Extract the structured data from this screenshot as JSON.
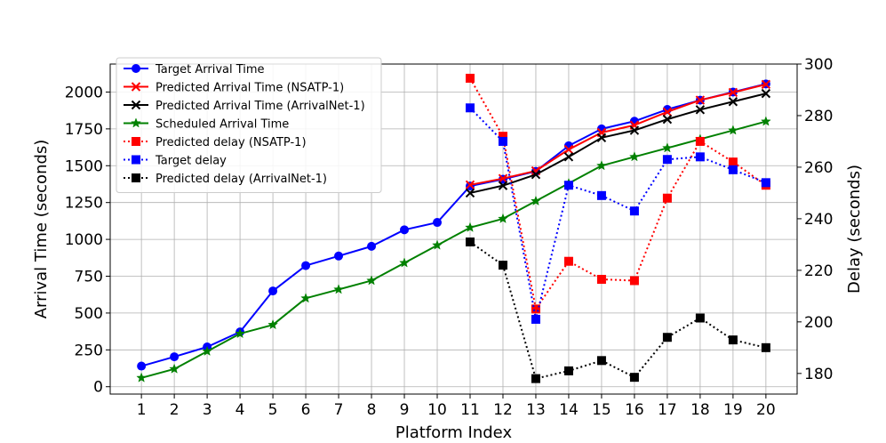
{
  "chart_data": {
    "type": "line",
    "xlabel": "Platform Index",
    "ylabel_left": "Arrival Time (seconds)",
    "ylabel_right": "Delay (seconds)",
    "x": [
      1,
      2,
      3,
      4,
      5,
      6,
      7,
      8,
      9,
      10,
      11,
      12,
      13,
      14,
      15,
      16,
      17,
      18,
      19,
      20
    ],
    "xticks": [
      "1",
      "2",
      "3",
      "4",
      "5",
      "6",
      "7",
      "8",
      "9",
      "10",
      "11",
      "12",
      "13",
      "14",
      "15",
      "16",
      "17",
      "18",
      "19",
      "20"
    ],
    "xlim": [
      0.05,
      20.95
    ],
    "ylim_left": [
      -50,
      2190
    ],
    "ylim_right": [
      172,
      300
    ],
    "yticks_left": [
      0,
      250,
      500,
      750,
      1000,
      1250,
      1500,
      1750,
      2000
    ],
    "yticks_right": [
      180,
      200,
      220,
      240,
      260,
      280,
      300
    ],
    "grid": true,
    "legend_position": "top-left",
    "series": [
      {
        "name": "Target Arrival Time",
        "axis": "left",
        "color": "#0000ff",
        "style": "solid",
        "marker": "circle",
        "x": [
          1,
          2,
          3,
          4,
          5,
          6,
          7,
          8,
          9,
          10,
          11,
          12,
          13,
          14,
          15,
          16,
          17,
          18,
          19,
          20
        ],
        "values": [
          140,
          203,
          270,
          372,
          650,
          822,
          887,
          953,
          1065,
          1115,
          1362,
          1408,
          1462,
          1635,
          1750,
          1802,
          1882,
          1945,
          2000,
          2055
        ]
      },
      {
        "name": "Predicted Arrival Time (NSATP-1)",
        "axis": "left",
        "color": "#ff0000",
        "style": "solid",
        "marker": "x",
        "x": [
          11,
          12,
          13,
          14,
          15,
          16,
          17,
          18,
          19,
          20
        ],
        "values": [
          1370,
          1413,
          1465,
          1610,
          1725,
          1775,
          1865,
          1945,
          1997,
          2052
        ]
      },
      {
        "name": "Predicted Arrival Time (ArrivalNet-1)",
        "axis": "left",
        "color": "#000000",
        "style": "solid",
        "marker": "x",
        "x": [
          11,
          12,
          13,
          14,
          15,
          16,
          17,
          18,
          19,
          20
        ],
        "values": [
          1315,
          1365,
          1440,
          1560,
          1690,
          1740,
          1815,
          1880,
          1935,
          1990
        ]
      },
      {
        "name": "Scheduled Arrival Time",
        "axis": "left",
        "color": "#008000",
        "style": "solid",
        "marker": "star",
        "x": [
          1,
          2,
          3,
          4,
          5,
          6,
          7,
          8,
          9,
          10,
          11,
          12,
          13,
          14,
          15,
          16,
          17,
          18,
          19,
          20
        ],
        "values": [
          60,
          120,
          240,
          360,
          420,
          600,
          660,
          720,
          840,
          960,
          1080,
          1140,
          1260,
          1380,
          1500,
          1560,
          1620,
          1680,
          1740,
          1800
        ]
      },
      {
        "name": "Predicted delay (NSATP-1)",
        "axis": "right",
        "color": "#ff0000",
        "style": "dotted",
        "marker": "square",
        "x": [
          11,
          12,
          13,
          14,
          15,
          16,
          17,
          18,
          19,
          20
        ],
        "values": [
          294.5,
          272,
          205,
          223.5,
          216.5,
          216,
          248,
          270,
          262,
          253
        ]
      },
      {
        "name": "Target delay",
        "axis": "right",
        "color": "#0000ff",
        "style": "dotted",
        "marker": "square",
        "x": [
          11,
          12,
          13,
          14,
          15,
          16,
          17,
          18,
          19,
          20
        ],
        "values": [
          283,
          270,
          201,
          253,
          249,
          243,
          263,
          264,
          259,
          254
        ]
      },
      {
        "name": "Predicted delay (ArrivalNet-1)",
        "axis": "right",
        "color": "#000000",
        "style": "dotted",
        "marker": "square",
        "x": [
          11,
          12,
          13,
          14,
          15,
          16,
          17,
          18,
          19,
          20
        ],
        "values": [
          231,
          222,
          178,
          181,
          185,
          178.5,
          194,
          201.5,
          193,
          190
        ]
      }
    ]
  }
}
